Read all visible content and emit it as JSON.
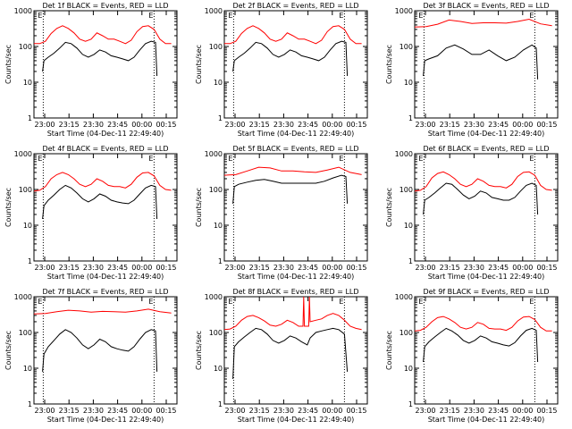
{
  "chart_data": [
    {
      "type": "line",
      "title": "Det 1f BLACK = Events, RED = LLD",
      "xlabel": "Start Time (04-Dec-11 22:49:40)",
      "ylabel": "Counts/sec",
      "yscale": "log",
      "ylim": [
        1,
        1000
      ],
      "yticks": [
        "1",
        "10",
        "100",
        "1000"
      ],
      "xticks": [
        "23:00",
        "23:15",
        "23:30",
        "23:45",
        "00:00",
        "00:15"
      ],
      "markers": [
        "E",
        "E"
      ],
      "series": [
        {
          "color": "#ff0000",
          "x": [
            0,
            4,
            8,
            12,
            16,
            20,
            24,
            28,
            32,
            36,
            40,
            44,
            48,
            52,
            56,
            60,
            64,
            68,
            72,
            76,
            80,
            84,
            88,
            92,
            96
          ],
          "y": [
            120,
            120,
            140,
            230,
            320,
            380,
            320,
            240,
            160,
            140,
            160,
            240,
            200,
            160,
            160,
            140,
            120,
            150,
            260,
            360,
            380,
            300,
            160,
            120,
            120
          ]
        },
        {
          "color": "#000000",
          "x": [
            6,
            7,
            10,
            14,
            18,
            22,
            26,
            30,
            34,
            38,
            42,
            46,
            50,
            54,
            58,
            62,
            66,
            70,
            74,
            78,
            82,
            85,
            86
          ],
          "y": [
            20,
            40,
            50,
            65,
            90,
            130,
            120,
            90,
            60,
            50,
            60,
            80,
            70,
            55,
            50,
            45,
            40,
            50,
            80,
            120,
            140,
            130,
            15
          ]
        }
      ]
    },
    {
      "type": "line",
      "title": "Det 2f BLACK = Events, RED = LLD",
      "xlabel": "Start Time (04-Dec-11 22:49:40)",
      "ylabel": "Counts/sec",
      "yscale": "log",
      "ylim": [
        1,
        1000
      ],
      "yticks": [
        "1",
        "10",
        "100",
        "1000"
      ],
      "xticks": [
        "23:00",
        "23:15",
        "23:30",
        "23:45",
        "00:00",
        "00:15"
      ],
      "markers": [
        "E",
        "E"
      ],
      "series": [
        {
          "color": "#ff0000",
          "x": [
            0,
            4,
            8,
            12,
            16,
            20,
            24,
            28,
            32,
            36,
            40,
            44,
            48,
            52,
            56,
            60,
            64,
            68,
            72,
            76,
            80,
            84,
            88,
            92,
            96
          ],
          "y": [
            120,
            120,
            140,
            230,
            320,
            380,
            320,
            240,
            160,
            140,
            160,
            240,
            200,
            160,
            160,
            140,
            120,
            150,
            260,
            360,
            380,
            300,
            160,
            120,
            120
          ]
        },
        {
          "color": "#000000",
          "x": [
            6,
            7,
            10,
            14,
            18,
            22,
            26,
            30,
            34,
            38,
            42,
            46,
            50,
            54,
            58,
            62,
            66,
            70,
            74,
            78,
            82,
            85,
            86
          ],
          "y": [
            20,
            40,
            50,
            65,
            90,
            130,
            120,
            90,
            60,
            50,
            60,
            80,
            70,
            55,
            50,
            45,
            40,
            50,
            80,
            120,
            140,
            130,
            15
          ]
        }
      ]
    },
    {
      "type": "line",
      "title": "Det 3f BLACK = Events, RED = LLD",
      "xlabel": "Start Time (04-Dec-11 22:49:40)",
      "ylabel": "Counts/sec",
      "yscale": "log",
      "ylim": [
        1,
        1000
      ],
      "yticks": [
        "1",
        "10",
        "100",
        "1000"
      ],
      "xticks": [
        "23:00",
        "23:15",
        "23:30",
        "23:45",
        "00:00",
        "00:15"
      ],
      "markers": [
        "E",
        "E"
      ],
      "series": [
        {
          "color": "#ff0000",
          "x": [
            0,
            8,
            16,
            24,
            32,
            40,
            48,
            56,
            64,
            72,
            80,
            88,
            96
          ],
          "y": [
            350,
            360,
            420,
            550,
            500,
            440,
            460,
            460,
            450,
            500,
            580,
            430,
            380
          ]
        },
        {
          "color": "#000000",
          "x": [
            6,
            7,
            10,
            16,
            22,
            28,
            34,
            40,
            46,
            52,
            58,
            64,
            70,
            76,
            82,
            85,
            86
          ],
          "y": [
            15,
            40,
            45,
            55,
            90,
            110,
            85,
            60,
            60,
            80,
            55,
            40,
            50,
            80,
            110,
            90,
            12
          ]
        }
      ]
    },
    {
      "type": "line",
      "title": "Det 4f BLACK = Events, RED = LLD",
      "xlabel": "Start Time (04-Dec-11 22:49:40)",
      "ylabel": "Counts/sec",
      "yscale": "log",
      "ylim": [
        1,
        1000
      ],
      "yticks": [
        "1",
        "10",
        "100",
        "1000"
      ],
      "xticks": [
        "23:00",
        "23:15",
        "23:30",
        "23:45",
        "00:00",
        "00:15"
      ],
      "markers": [
        "E",
        "E"
      ],
      "series": [
        {
          "color": "#ff0000",
          "x": [
            0,
            4,
            8,
            12,
            16,
            20,
            24,
            28,
            32,
            36,
            40,
            44,
            48,
            52,
            56,
            60,
            64,
            68,
            72,
            76,
            80,
            84,
            88,
            92,
            96
          ],
          "y": [
            90,
            95,
            120,
            200,
            260,
            300,
            260,
            200,
            140,
            120,
            140,
            200,
            170,
            130,
            120,
            120,
            110,
            140,
            220,
            290,
            300,
            240,
            130,
            100,
            95
          ]
        },
        {
          "color": "#000000",
          "x": [
            6,
            7,
            10,
            14,
            18,
            22,
            26,
            30,
            34,
            38,
            42,
            46,
            50,
            54,
            58,
            62,
            66,
            70,
            74,
            78,
            82,
            85,
            86
          ],
          "y": [
            15,
            35,
            50,
            70,
            100,
            130,
            110,
            80,
            55,
            45,
            55,
            75,
            65,
            50,
            45,
            42,
            40,
            50,
            75,
            110,
            130,
            120,
            15
          ]
        }
      ]
    },
    {
      "type": "line",
      "title": "Det 5f BLACK = Events, RED = LLD",
      "xlabel": "Start Time (04-Dec-11 22:49:40)",
      "ylabel": "Counts/sec",
      "yscale": "log",
      "ylim": [
        1,
        1000
      ],
      "yticks": [
        "1",
        "10",
        "100",
        "1000"
      ],
      "xticks": [
        "23:00",
        "23:15",
        "23:30",
        "23:45",
        "00:00",
        "00:15"
      ],
      "markers": [
        "E",
        "E"
      ],
      "series": [
        {
          "color": "#ff0000",
          "x": [
            0,
            8,
            16,
            24,
            32,
            40,
            48,
            56,
            64,
            72,
            80,
            88,
            96
          ],
          "y": [
            250,
            260,
            330,
            420,
            400,
            330,
            330,
            310,
            300,
            350,
            420,
            300,
            260
          ]
        },
        {
          "color": "#000000",
          "x": [
            6,
            7,
            10,
            16,
            22,
            28,
            34,
            40,
            46,
            52,
            58,
            64,
            70,
            76,
            82,
            85,
            86
          ],
          "y": [
            40,
            120,
            140,
            160,
            180,
            190,
            170,
            150,
            150,
            150,
            150,
            150,
            170,
            210,
            250,
            230,
            40
          ]
        }
      ]
    },
    {
      "type": "line",
      "title": "Det 6f BLACK = Events, RED = LLD",
      "xlabel": "Start Time (04-Dec-11 22:49:40)",
      "ylabel": "Counts/sec",
      "yscale": "log",
      "ylim": [
        1,
        1000
      ],
      "yticks": [
        "1",
        "10",
        "100",
        "1000"
      ],
      "xticks": [
        "23:00",
        "23:15",
        "23:30",
        "23:45",
        "00:00",
        "00:15"
      ],
      "markers": [
        "E",
        "E"
      ],
      "series": [
        {
          "color": "#ff0000",
          "x": [
            0,
            4,
            8,
            12,
            16,
            20,
            24,
            28,
            32,
            36,
            40,
            44,
            48,
            52,
            56,
            60,
            64,
            68,
            72,
            76,
            80,
            84,
            88,
            92,
            96
          ],
          "y": [
            90,
            95,
            120,
            210,
            280,
            310,
            260,
            200,
            140,
            120,
            140,
            200,
            170,
            130,
            120,
            120,
            110,
            140,
            230,
            300,
            310,
            250,
            130,
            100,
            95
          ]
        },
        {
          "color": "#000000",
          "x": [
            6,
            7,
            10,
            14,
            18,
            22,
            26,
            30,
            34,
            38,
            42,
            46,
            50,
            54,
            58,
            62,
            66,
            70,
            74,
            78,
            82,
            85,
            86
          ],
          "y": [
            20,
            50,
            60,
            80,
            110,
            150,
            140,
            100,
            70,
            55,
            65,
            90,
            80,
            60,
            55,
            50,
            50,
            60,
            90,
            130,
            150,
            130,
            20
          ]
        }
      ]
    },
    {
      "type": "line",
      "title": "Det 7f BLACK = Events, RED = LLD",
      "xlabel": "Start Time (04-Dec-11 22:49:40)",
      "ylabel": "Counts/sec",
      "yscale": "log",
      "ylim": [
        1,
        1000
      ],
      "yticks": [
        "1",
        "10",
        "100",
        "1000"
      ],
      "xticks": [
        "23:00",
        "23:15",
        "23:30",
        "23:45",
        "00:00",
        "00:15"
      ],
      "markers": [
        "E",
        "E"
      ],
      "series": [
        {
          "color": "#ff0000",
          "x": [
            0,
            8,
            16,
            24,
            32,
            40,
            48,
            56,
            64,
            72,
            80,
            88,
            96
          ],
          "y": [
            330,
            340,
            380,
            420,
            400,
            370,
            390,
            380,
            370,
            400,
            450,
            380,
            350
          ]
        },
        {
          "color": "#000000",
          "x": [
            6,
            7,
            10,
            14,
            18,
            22,
            26,
            30,
            34,
            38,
            42,
            46,
            50,
            54,
            58,
            62,
            66,
            70,
            74,
            78,
            82,
            85,
            86
          ],
          "y": [
            8,
            25,
            40,
            60,
            90,
            120,
            100,
            70,
            45,
            35,
            45,
            65,
            55,
            40,
            35,
            32,
            30,
            40,
            65,
            100,
            120,
            110,
            8
          ]
        }
      ]
    },
    {
      "type": "line",
      "title": "Det 8f BLACK = Events, RED = LLD",
      "xlabel": "Start Time (04-Dec-11 22:49:40)",
      "ylabel": "Counts/sec",
      "yscale": "log",
      "ylim": [
        1,
        1000
      ],
      "yticks": [
        "1",
        "10",
        "100",
        "1000"
      ],
      "xticks": [
        "23:00",
        "23:15",
        "23:30",
        "23:45",
        "00:00",
        "00:15"
      ],
      "markers": [
        "E",
        "E"
      ],
      "series": [
        {
          "color": "#ff0000",
          "x": [
            0,
            4,
            8,
            12,
            16,
            20,
            24,
            28,
            32,
            36,
            40,
            44,
            48,
            52,
            55,
            55.5,
            56,
            58,
            59,
            59.5,
            60,
            64,
            68,
            72,
            76,
            80,
            84,
            88,
            92,
            96
          ],
          "y": [
            120,
            125,
            150,
            220,
            280,
            300,
            260,
            210,
            160,
            150,
            170,
            220,
            190,
            150,
            150,
            1000,
            150,
            150,
            150,
            1000,
            200,
            220,
            240,
            300,
            340,
            300,
            220,
            150,
            130,
            120
          ]
        },
        {
          "color": "#000000",
          "x": [
            6,
            7,
            10,
            14,
            18,
            22,
            26,
            30,
            34,
            38,
            42,
            46,
            50,
            54,
            58,
            60,
            64,
            68,
            72,
            76,
            80,
            84,
            86
          ],
          "y": [
            5,
            40,
            55,
            75,
            100,
            130,
            120,
            90,
            60,
            50,
            60,
            80,
            70,
            55,
            45,
            70,
            100,
            110,
            120,
            130,
            120,
            90,
            8
          ]
        }
      ]
    },
    {
      "type": "line",
      "title": "Det 9f BLACK = Events, RED = LLD",
      "xlabel": "Start Time (04-Dec-11 22:49:40)",
      "ylabel": "Counts/sec",
      "yscale": "log",
      "ylim": [
        1,
        1000
      ],
      "yticks": [
        "1",
        "10",
        "100",
        "1000"
      ],
      "xticks": [
        "23:00",
        "23:15",
        "23:30",
        "23:45",
        "00:00",
        "00:15"
      ],
      "markers": [
        "E",
        "E"
      ],
      "series": [
        {
          "color": "#ff0000",
          "x": [
            0,
            4,
            8,
            12,
            16,
            20,
            24,
            28,
            32,
            36,
            40,
            44,
            48,
            52,
            56,
            60,
            64,
            68,
            72,
            76,
            80,
            84,
            88,
            92,
            96
          ],
          "y": [
            110,
            115,
            140,
            200,
            260,
            280,
            240,
            190,
            140,
            125,
            140,
            190,
            170,
            130,
            125,
            125,
            115,
            140,
            210,
            270,
            280,
            230,
            140,
            110,
            110
          ]
        },
        {
          "color": "#000000",
          "x": [
            6,
            7,
            10,
            14,
            18,
            22,
            26,
            30,
            34,
            38,
            42,
            46,
            50,
            54,
            58,
            62,
            66,
            70,
            74,
            78,
            82,
            85,
            86
          ],
          "y": [
            15,
            40,
            55,
            75,
            100,
            130,
            110,
            85,
            60,
            50,
            60,
            80,
            70,
            55,
            50,
            45,
            42,
            52,
            80,
            115,
            130,
            115,
            15
          ]
        }
      ]
    }
  ]
}
